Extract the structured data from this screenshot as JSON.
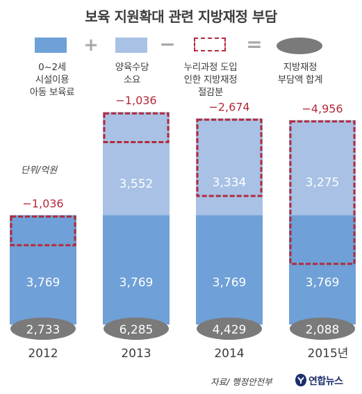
{
  "title": "보육 지원확대 관련 지방재정 부담",
  "legend": [
    {
      "label": "0~2세\n시설이용\n아동 보육료",
      "color": "#6fa0d7",
      "shape": "rect"
    },
    {
      "label": "양육수당\n소요",
      "color": "#a8c1e5",
      "shape": "rect"
    },
    {
      "label": "누리과정 도입\n인한 지방재정\n절감분",
      "color": "#b22a3a",
      "shape": "dashed-rect"
    },
    {
      "label": "지방재정\n부담액 합계",
      "color": "#7a7a7a",
      "shape": "ellipse"
    }
  ],
  "operators": [
    "+",
    "−",
    "="
  ],
  "unit_label": "단위/억원",
  "chart_data": {
    "type": "bar",
    "stacked": true,
    "categories": [
      "2012",
      "2013",
      "2014",
      "2015년"
    ],
    "series": [
      {
        "name": "0~2세 시설이용 아동 보육료",
        "values": [
          3769,
          3769,
          3769,
          3769
        ],
        "color": "#6fa0d7"
      },
      {
        "name": "양육수당 소요",
        "values": [
          null,
          3552,
          3334,
          3275
        ],
        "color": "#a8c1e5"
      },
      {
        "name": "누리과정 도입 인한 지방재정 절감분",
        "values": [
          -1036,
          -1036,
          -2674,
          -4956
        ],
        "color": "#b22a3a"
      }
    ],
    "totals": [
      2733,
      6285,
      4429,
      2088
    ],
    "labels": {
      "base": [
        "3,769",
        "3,769",
        "3,769",
        "3,769"
      ],
      "childcare": [
        "",
        "3,552",
        "3,334",
        "3,275"
      ],
      "savings": [
        "−1,036",
        "−1,036",
        "−2,674",
        "−4,956"
      ],
      "totals": [
        "2,733",
        "6,285",
        "4,429",
        "2,088"
      ]
    }
  },
  "source": "자료/ 행정안전부",
  "logo_text": "연합뉴스",
  "colors": {
    "base": "#6fa0d7",
    "childcare": "#a8c1e5",
    "savings": "#b22a3a",
    "total_ellipse": "#7a7a7a",
    "operator": "#a7a7a7"
  }
}
